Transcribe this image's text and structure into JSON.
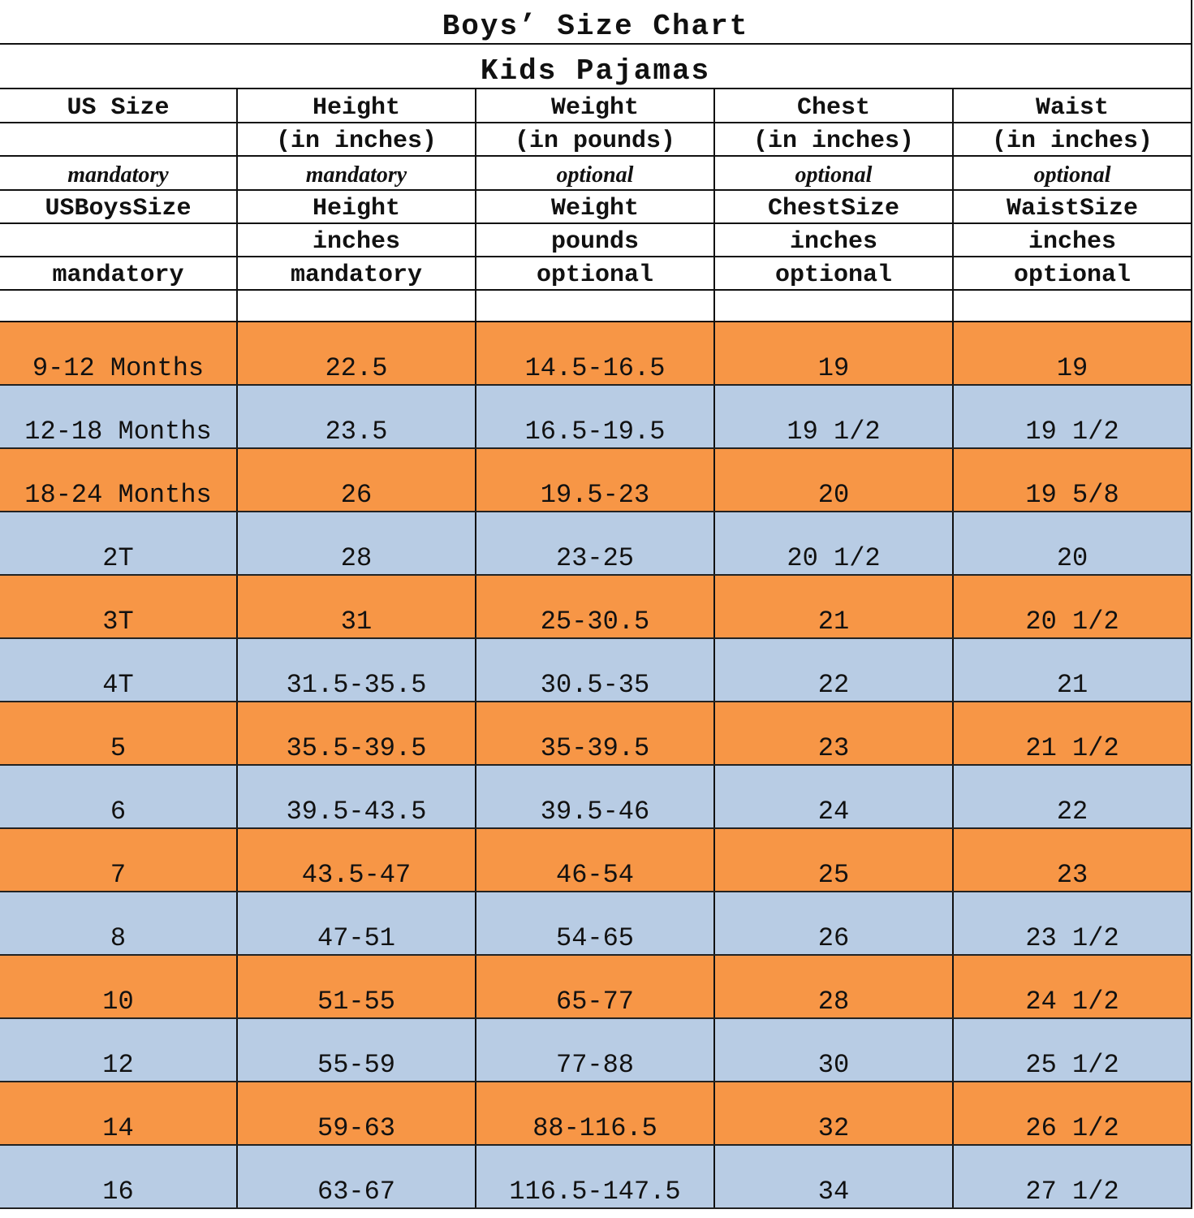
{
  "title": "Boys’ Size Chart",
  "subtitle": "Kids Pajamas",
  "header_rows": [
    [
      "US Size",
      "Height",
      "Weight",
      "Chest",
      "Waist"
    ],
    [
      "",
      "(in inches)",
      "(in pounds)",
      "(in inches)",
      "(in inches)"
    ],
    [
      "mandatory",
      "mandatory",
      "optional",
      "optional",
      "optional"
    ],
    [
      "USBoysSize",
      "Height",
      "Weight",
      "ChestSize",
      "WaistSize"
    ],
    [
      "",
      "inches",
      "pounds",
      "inches",
      "inches"
    ],
    [
      "mandatory",
      "mandatory",
      "optional",
      "optional",
      "optional"
    ],
    [
      "",
      "",
      "",
      "",
      ""
    ]
  ],
  "colors": {
    "orange": "#F79646",
    "blue": "#B8CCE4"
  },
  "rows": [
    [
      "9-12 Months",
      "22.5",
      "14.5-16.5",
      "19",
      "19"
    ],
    [
      "12-18 Months",
      "23.5",
      "16.5-19.5",
      "19 1/2",
      "19 1/2"
    ],
    [
      "18-24 Months",
      "26",
      "19.5-23",
      "20",
      "19 5/8"
    ],
    [
      "2T",
      "28",
      "23-25",
      "20 1/2",
      "20"
    ],
    [
      "3T",
      "31",
      "25-30.5",
      "21",
      "20 1/2"
    ],
    [
      "4T",
      "31.5-35.5",
      "30.5-35",
      "22",
      "21"
    ],
    [
      "5",
      "35.5-39.5",
      "35-39.5",
      "23",
      "21 1/2"
    ],
    [
      "6",
      "39.5-43.5",
      "39.5-46",
      "24",
      "22"
    ],
    [
      "7",
      "43.5-47",
      "46-54",
      "25",
      "23"
    ],
    [
      "8",
      "47-51",
      "54-65",
      "26",
      "23 1/2"
    ],
    [
      "10",
      "51-55",
      "65-77",
      "28",
      "24 1/2"
    ],
    [
      "12",
      "55-59",
      "77-88",
      "30",
      "25 1/2"
    ],
    [
      "14",
      "59-63",
      "88-116.5",
      "32",
      "26 1/2"
    ],
    [
      "16",
      "63-67",
      "116.5-147.5",
      "34",
      "27 1/2"
    ]
  ]
}
